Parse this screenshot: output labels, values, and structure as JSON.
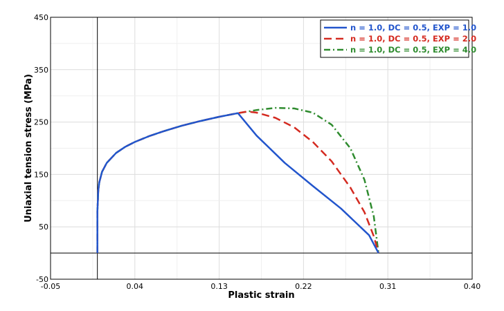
{
  "chart_data": {
    "type": "line",
    "title": "",
    "xlabel": "Plastic strain",
    "ylabel": "Uniaxial tension stress (MPa)",
    "xlim": [
      -0.05,
      0.4
    ],
    "ylim": [
      -50,
      450
    ],
    "xticks": [
      "-0.05",
      "0.04",
      "0.13",
      "0.22",
      "0.31",
      "0.40"
    ],
    "xtick_values": [
      -0.05,
      0.04,
      0.13,
      0.22,
      0.31,
      0.4
    ],
    "yticks": [
      "-50",
      "50",
      "150",
      "250",
      "350",
      "450"
    ],
    "ytick_values": [
      -50,
      50,
      150,
      250,
      350,
      450
    ],
    "grid": true,
    "legend_position": "top-right",
    "series": [
      {
        "name": "n = 1.0, DC = 0.5, EXP = 1.0",
        "color": "#2255cc",
        "style": "solid",
        "x": [
          0.0,
          0.0,
          0.001,
          0.002,
          0.005,
          0.01,
          0.02,
          0.03,
          0.04,
          0.055,
          0.07,
          0.09,
          0.11,
          0.13,
          0.15,
          0.17,
          0.2,
          0.23,
          0.26,
          0.29,
          0.3
        ],
        "y": [
          0,
          80,
          120,
          135,
          155,
          172,
          191,
          203,
          212,
          223,
          232,
          243,
          252,
          260,
          267,
          224,
          172,
          128,
          85,
          34,
          0
        ]
      },
      {
        "name": "n = 1.0, DC = 0.5, EXP = 2.0",
        "color": "#d42a20",
        "style": "dashed",
        "x": [
          0.0,
          0.0,
          0.001,
          0.002,
          0.005,
          0.01,
          0.02,
          0.03,
          0.04,
          0.055,
          0.07,
          0.09,
          0.11,
          0.13,
          0.15,
          0.16,
          0.17,
          0.19,
          0.21,
          0.23,
          0.25,
          0.27,
          0.285,
          0.295,
          0.3
        ],
        "y": [
          0,
          80,
          120,
          135,
          155,
          172,
          191,
          203,
          212,
          223,
          232,
          243,
          252,
          260,
          267,
          270,
          268,
          258,
          240,
          212,
          175,
          125,
          78,
          32,
          0
        ]
      },
      {
        "name": "n = 1.0, DC = 0.5, EXP = 4.0",
        "color": "#2e8b2e",
        "style": "dashdot",
        "x": [
          0.0,
          0.0,
          0.001,
          0.002,
          0.005,
          0.01,
          0.02,
          0.03,
          0.04,
          0.055,
          0.07,
          0.09,
          0.11,
          0.13,
          0.15,
          0.17,
          0.19,
          0.21,
          0.23,
          0.25,
          0.27,
          0.285,
          0.295,
          0.3
        ],
        "y": [
          0,
          80,
          120,
          135,
          155,
          172,
          191,
          203,
          212,
          223,
          232,
          243,
          252,
          260,
          267,
          273,
          277,
          276,
          268,
          245,
          200,
          140,
          70,
          0
        ]
      }
    ]
  }
}
